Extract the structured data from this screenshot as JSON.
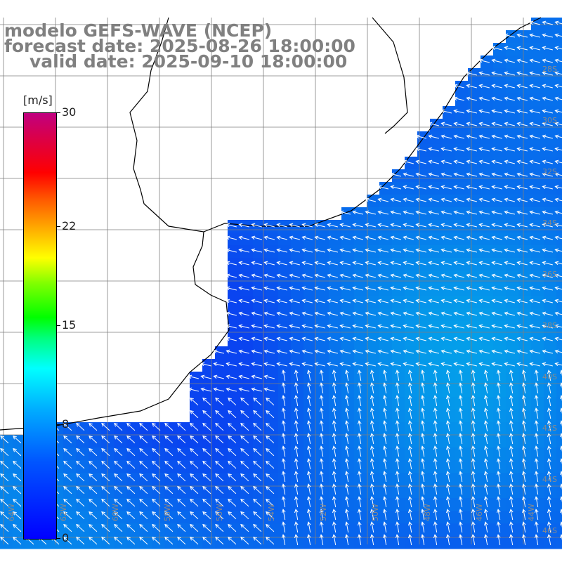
{
  "title": {
    "model": "modelo GEFS-WAVE (NCEP)",
    "forecast": "forecast date: 2025-08-26 18:00:00",
    "valid": "valid date: 2025-09-10 18:00:00"
  },
  "colorbar": {
    "unit": "[m/s]",
    "min": 0,
    "max": 30,
    "ticks": [
      {
        "value": 30,
        "label": "30"
      },
      {
        "value": 22,
        "label": "22"
      },
      {
        "value": 15,
        "label": "15"
      },
      {
        "value": 8,
        "label": "8"
      },
      {
        "value": 0,
        "label": "0"
      }
    ]
  },
  "map": {
    "ocean_color_low": "#0a3cf0",
    "ocean_color_high": "#00e0e6",
    "land_color": "#ffffff",
    "coast_color": "#000000",
    "grid_color": "#7f7f7f",
    "arrow_color": "#ffffff"
  },
  "labels": {
    "lon": [
      "64W",
      "62W",
      "60W",
      "58W",
      "56W",
      "54W",
      "52W",
      "50W",
      "48W",
      "46W",
      "44W"
    ],
    "lat": [
      "28S",
      "30S",
      "32S",
      "34S",
      "36S",
      "38S",
      "40S",
      "42S",
      "44S",
      "46S"
    ]
  }
}
